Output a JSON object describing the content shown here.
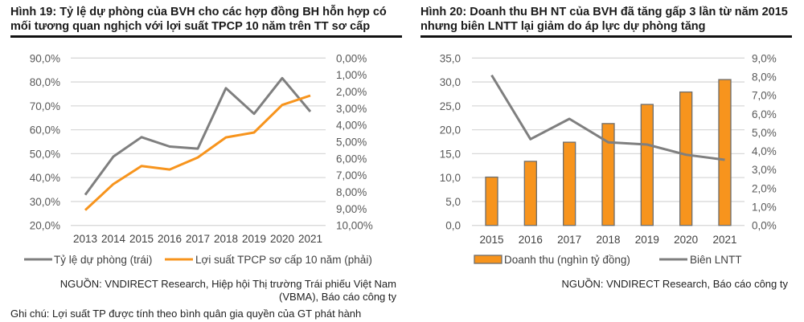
{
  "figures": [
    {
      "title_line1": "Hình 19: Tỷ lệ dự phòng của BVH cho các hợp đồng BH hỗn hợp có",
      "title_line2": "mối tương quan nghịch với lợi suất TPCP 10 năm trên TT sơ cấp",
      "source_line1": "NGUỒN: VNDIRECT Research, Hiệp hội Thị trường Trái phiếu Việt Nam",
      "source_line2": "(VBMA), Báo cáo công ty",
      "note": "Ghi chú: Lợi suất TP được tính theo bình quân gia quyền của GT phát hành"
    },
    {
      "title_line1": "Hình 20: Doanh thu BH NT của BVH đã tăng gấp 3 lần từ năm 2015",
      "title_line2": "nhưng biên LNTT lại giảm do áp lực dự phòng tăng",
      "source_line1": "NGUỒN: VNDIRECT Research, Báo cáo công ty"
    }
  ],
  "colors": {
    "gray_series": "#7f7f7f",
    "orange_series": "#f7941d",
    "grid": "#d9d9d9",
    "bar_border": "#6d6d6d"
  },
  "chart_data": [
    {
      "type": "line",
      "title": "Hình 19: Tỷ lệ dự phòng của BVH cho các hợp đồng BH hỗn hợp có mối tương quan nghịch với lợi suất TPCP 10 năm trên TT sơ cấp",
      "categories": [
        "2013",
        "2014",
        "2015",
        "2016",
        "2017",
        "2018",
        "2019",
        "2020",
        "2021"
      ],
      "series": [
        {
          "name": "Tỷ lệ dự phòng (trái)",
          "axis": "left",
          "color": "#7f7f7f",
          "values": [
            32.8,
            48.8,
            56.9,
            53.0,
            52.1,
            77.4,
            66.7,
            81.6,
            67.6
          ]
        },
        {
          "name": "Lợi suất TPCP sơ cấp 10 năm (phải)",
          "axis": "right",
          "color": "#f7941d",
          "values": [
            9.09,
            7.53,
            6.45,
            6.66,
            5.94,
            4.74,
            4.45,
            2.8,
            2.24
          ]
        }
      ],
      "y_left": {
        "min": 20,
        "max": 90,
        "step": 10,
        "ticks": [
          "90,0%",
          "80,0%",
          "70,0%",
          "60,0%",
          "50,0%",
          "40,0%",
          "30,0%",
          "20,0%"
        ]
      },
      "y_right": {
        "min": 0,
        "max": 10,
        "step": 1,
        "reversed": true,
        "ticks": [
          "0,00%",
          "1,00%",
          "2,00%",
          "3,00%",
          "4,00%",
          "5,00%",
          "6,00%",
          "7,00%",
          "8,00%",
          "9,00%",
          "10,00%"
        ]
      },
      "xlabel": "",
      "ylabel": "",
      "grid": true,
      "legend": "bottom"
    },
    {
      "type": "bar",
      "title": "Hình 20: Doanh thu BH NT của BVH đã tăng gấp 3 lần từ năm 2015 nhưng biên LNTT lại giảm do áp lực dự phòng tăng",
      "categories": [
        "2015",
        "2016",
        "2017",
        "2018",
        "2019",
        "2020",
        "2021"
      ],
      "series": [
        {
          "name": "Doanh thu (nghìn tỷ đồng)",
          "kind": "bar",
          "axis": "left",
          "color": "#f7941d",
          "values": [
            10.1,
            13.4,
            17.4,
            21.3,
            25.3,
            27.9,
            30.5
          ]
        },
        {
          "name": "Biên LNTT",
          "kind": "line",
          "axis": "right",
          "color": "#7f7f7f",
          "values": [
            8.08,
            4.64,
            5.73,
            4.47,
            4.35,
            3.8,
            3.53
          ]
        }
      ],
      "y_left": {
        "min": 0,
        "max": 35,
        "step": 5,
        "ticks": [
          "35,0",
          "30,0",
          "25,0",
          "20,0",
          "15,0",
          "10,0",
          "5,0",
          "0,0"
        ]
      },
      "y_right": {
        "min": 0,
        "max": 9,
        "step": 1,
        "ticks": [
          "9,0%",
          "8,0%",
          "7,0%",
          "6,0%",
          "5,0%",
          "4,0%",
          "3,0%",
          "2,0%",
          "1,0%",
          "0,0%"
        ]
      },
      "xlabel": "",
      "ylabel": "",
      "grid": true,
      "legend": "bottom"
    }
  ]
}
